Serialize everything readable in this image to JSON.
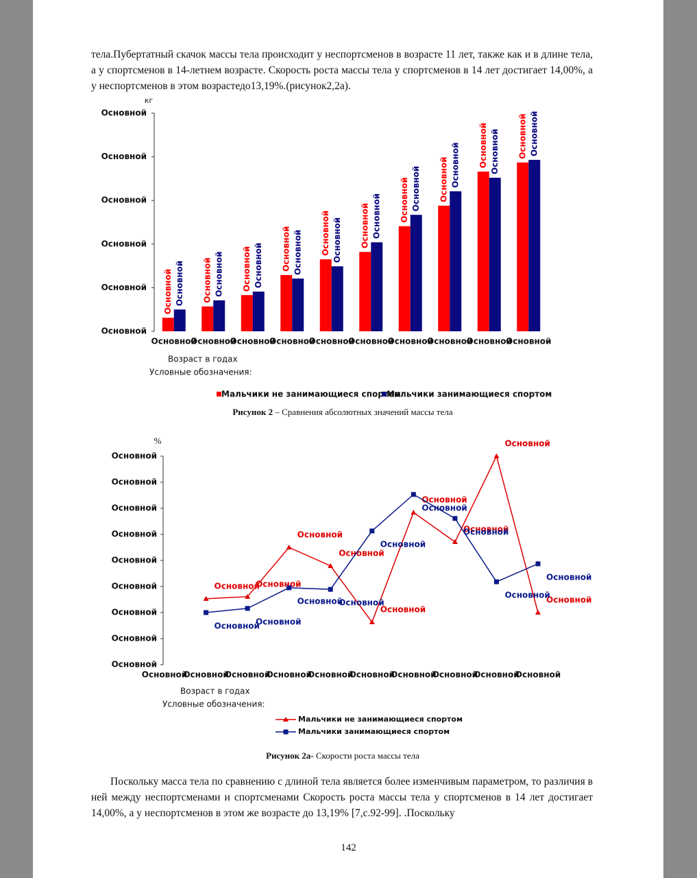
{
  "paragraph_1": "тела.Пубертатный скачок массы тела происходит у неспортсменов в возрасте 11 лет, также как и в длине тела, а у спортсменов в 14-летнем возрасте. Скорость роста массы тела у спортсменов в 14 лет достигает 14,00%, а у неспортсменов в этом возрастедо13,19%.(рисунок2,2а).",
  "chart_data": [
    {
      "type": "bar",
      "y_unit": "кг",
      "x_label": "Возраст в годах",
      "legend_title": "Условные обозначения:",
      "caption_label": "Рисунок 2",
      "caption_text": " – Сравнения абсолютных значений массы тела",
      "categories": [
        "Основной",
        "Основной",
        "Основной",
        "Основной",
        "Основной",
        "Основной",
        "Основной",
        "Основной",
        "Основной",
        "Основной"
      ],
      "series": [
        {
          "name": "Мальчики не занимающиеся спортом",
          "color": "#ff0000",
          "values": [
            0.31,
            0.57,
            0.83,
            1.29,
            1.65,
            1.82,
            2.41,
            2.88,
            3.66,
            3.87
          ],
          "value_labels": [
            "Основной",
            "Основной",
            "Основной",
            "Основной",
            "Основной",
            "Основной",
            "Основной",
            "Основной",
            "Основной",
            "Основной"
          ]
        },
        {
          "name": "Мальчики занимающиеся спортом",
          "color": "#0a0a80",
          "values": [
            0.5,
            0.71,
            0.91,
            1.21,
            1.49,
            2.04,
            2.67,
            3.21,
            3.52,
            3.93
          ],
          "value_labels": [
            "Основной",
            "Основной",
            "Основной",
            "Основной",
            "Основной",
            "Основной",
            "Основной",
            "Основной",
            "Основной",
            "Основной"
          ]
        }
      ],
      "ylim": [
        0,
        5
      ],
      "yticks": [
        {
          "value": 0,
          "label": "Основной"
        },
        {
          "value": 1,
          "label": "Основной"
        },
        {
          "value": 2,
          "label": "Основной"
        },
        {
          "value": 3,
          "label": "Основной"
        },
        {
          "value": 4,
          "label": "Основной"
        },
        {
          "value": 5,
          "label": "Основной"
        }
      ]
    },
    {
      "type": "line",
      "y_unit": "%",
      "x_label": "Возраст в годах",
      "legend_title": "Условные обозначения:",
      "caption_label": "Рисунок 2а-",
      "caption_text": " Скорости роста массы тела",
      "categories": [
        "Основной",
        "Основной",
        "Основной",
        "Основной",
        "Основной",
        "Основной",
        "Основной",
        "Основной",
        "Основной",
        "Основной"
      ],
      "series": [
        {
          "name": "Мальчики не занимающиеся спортом",
          "color": "#e00000",
          "marker": "triangle",
          "values": [
            null,
            2.53,
            2.61,
            4.5,
            3.79,
            1.63,
            5.84,
            4.71,
            8.0,
            2.0
          ],
          "value_labels": [
            null,
            "Основной",
            "Основной",
            "Основной",
            "Основной",
            "Основной",
            "Основной",
            "Основной",
            "Основной",
            "Основной"
          ]
        },
        {
          "name": "Мальчики занимающиеся спортом",
          "color": "#0a1a8a",
          "marker": "square",
          "values": [
            null,
            2.0,
            2.16,
            2.95,
            2.89,
            5.13,
            6.53,
            5.61,
            3.18,
            3.87
          ],
          "value_labels": [
            null,
            "Основной",
            "Основной",
            "Основной",
            "Основной",
            "Основной",
            "Основной",
            "Основной",
            "Основной",
            "Основной"
          ]
        }
      ],
      "ylim": [
        0,
        8
      ],
      "yticks": [
        {
          "value": 0,
          "label": "Основной"
        },
        {
          "value": 1,
          "label": "Основной"
        },
        {
          "value": 2,
          "label": "Основной"
        },
        {
          "value": 3,
          "label": "Основной"
        },
        {
          "value": 4,
          "label": "Основной"
        },
        {
          "value": 5,
          "label": "Основной"
        },
        {
          "value": 6,
          "label": "Основной"
        },
        {
          "value": 7,
          "label": "Основной"
        },
        {
          "value": 8,
          "label": "Основной"
        }
      ]
    }
  ],
  "paragraph_2": "Поскольку масса тела по сравнению с длиной тела является более изменчивым параметром, то различия в ней между неспортсменами и спортсменами Скорость роста массы тела у спортсменов в 14 лет достигает 14,00%, а у неспортсменов в этом же возрасте до 13,19% [7,с.92-99]. .Поскольку",
  "page_number": "142"
}
